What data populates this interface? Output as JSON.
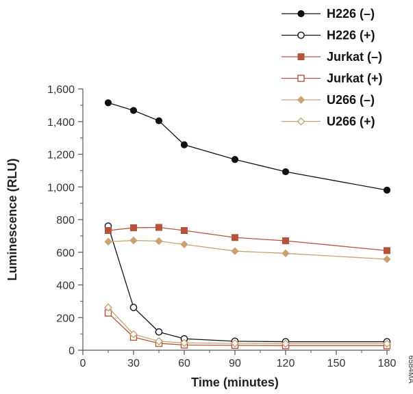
{
  "chart_data": {
    "type": "line",
    "xlabel": "Time (minutes)",
    "ylabel": "Luminescence (RLU)",
    "xlim": [
      0,
      180
    ],
    "ylim": [
      0,
      1600
    ],
    "xticks": [
      0,
      30,
      60,
      90,
      120,
      150,
      180
    ],
    "yticks": [
      0,
      200,
      400,
      600,
      800,
      1000,
      1200,
      1400,
      1600
    ],
    "xtick_labels": [
      "0",
      "30",
      "60",
      "90",
      "120",
      "150",
      "180"
    ],
    "ytick_labels": [
      "0",
      "200",
      "400",
      "600",
      "800",
      "1,000",
      "1,200",
      "1,400",
      "1,600"
    ],
    "grid": false,
    "legend_position": "top-right",
    "x": [
      15,
      30,
      45,
      60,
      90,
      120,
      180
    ],
    "series": [
      {
        "name": "H226 (–)",
        "color": "#111111",
        "marker": "circle-filled",
        "values": [
          1515,
          1468,
          1405,
          1258,
          1168,
          1093,
          980
        ]
      },
      {
        "name": "H226 (+)",
        "color": "#111111",
        "marker": "circle-open",
        "values": [
          760,
          262,
          112,
          70,
          55,
          52,
          52
        ]
      },
      {
        "name": "Jurkat (–)",
        "color": "#b5533c",
        "marker": "square-filled",
        "values": [
          733,
          750,
          752,
          733,
          690,
          670,
          610
        ]
      },
      {
        "name": "Jurkat (+)",
        "color": "#b5533c",
        "marker": "square-open",
        "values": [
          228,
          80,
          42,
          32,
          30,
          28,
          28
        ]
      },
      {
        "name": "U266 (–)",
        "color": "#c9a172",
        "marker": "diamond-filled",
        "values": [
          665,
          672,
          668,
          648,
          607,
          593,
          557
        ]
      },
      {
        "name": "U266 (+)",
        "color": "#c9a172",
        "marker": "diamond-open",
        "values": [
          262,
          98,
          55,
          45,
          42,
          40,
          40
        ]
      }
    ]
  },
  "figure_id": "6584MA"
}
